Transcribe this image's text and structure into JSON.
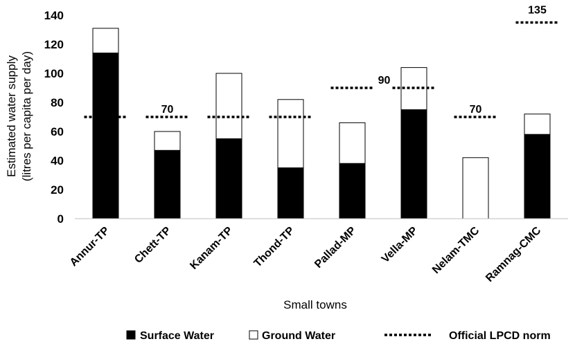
{
  "chart_data": {
    "type": "bar",
    "stacked": true,
    "categories": [
      "Annur-TP",
      "Chett-TP",
      "Kanam-TP",
      "Thond-TP",
      "Pallad-MP",
      "Vella-MP",
      "Nelam-TMC",
      "Ramnag-CMC"
    ],
    "series": [
      {
        "name": "Surface Water",
        "values": [
          114,
          47,
          55,
          35,
          38,
          75,
          0,
          58
        ],
        "color": "#000000"
      },
      {
        "name": "Ground Water",
        "values": [
          17,
          13,
          45,
          47,
          28,
          29,
          42,
          14
        ],
        "color": "#ffffff"
      }
    ],
    "norm": {
      "name": "Official LPCD norm",
      "values": [
        70,
        70,
        70,
        70,
        90,
        90,
        70,
        135
      ],
      "labels": [
        {
          "category_index": 1,
          "text": "70"
        },
        {
          "category_index": 4,
          "text": "90"
        },
        {
          "category_index": 6,
          "text": "70"
        },
        {
          "category_index": 7,
          "text": "135"
        }
      ]
    },
    "xlabel": "Small towns",
    "ylabel_line1": "Estimated water supply",
    "ylabel_line2": "(litres per capita per day)",
    "ylim": [
      0,
      140
    ],
    "yticks": [
      0,
      20,
      40,
      60,
      80,
      100,
      120,
      140
    ],
    "grid": false,
    "legend_position": "bottom"
  }
}
